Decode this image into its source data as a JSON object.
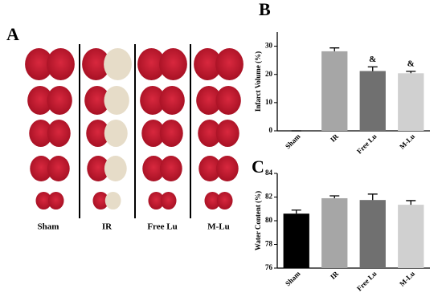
{
  "figure": {
    "panel_labels": [
      "A",
      "B",
      "C"
    ],
    "slice_groups": [
      "Sham",
      "IR",
      "Free Lu",
      "M-Lu"
    ]
  },
  "chart_data": [
    {
      "type": "bar",
      "y_label": "Infarct Volume (%)",
      "categories": [
        "Sham",
        "IR",
        "Free Lu",
        "M-Lu"
      ],
      "values": [
        0,
        28.2,
        21.2,
        20.4
      ],
      "errors": [
        0,
        1.2,
        1.5,
        0.7
      ],
      "annotations": [
        null,
        null,
        "&",
        "&"
      ],
      "colors": [
        "#000000",
        "#a6a6a6",
        "#707070",
        "#d0d0d0"
      ],
      "ylim": [
        0,
        35
      ],
      "yticks": [
        0,
        10,
        20,
        30
      ]
    },
    {
      "type": "bar",
      "y_label": "Water Content (%)",
      "categories": [
        "Sham",
        "IR",
        "Free Lu",
        "M-Lu"
      ],
      "values": [
        80.6,
        81.9,
        81.75,
        81.35
      ],
      "errors": [
        0.3,
        0.2,
        0.5,
        0.35
      ],
      "colors": [
        "#000000",
        "#a6a6a6",
        "#707070",
        "#d0d0d0"
      ],
      "ylim": [
        76,
        84
      ],
      "yticks": [
        76,
        78,
        80,
        82,
        84
      ]
    }
  ]
}
